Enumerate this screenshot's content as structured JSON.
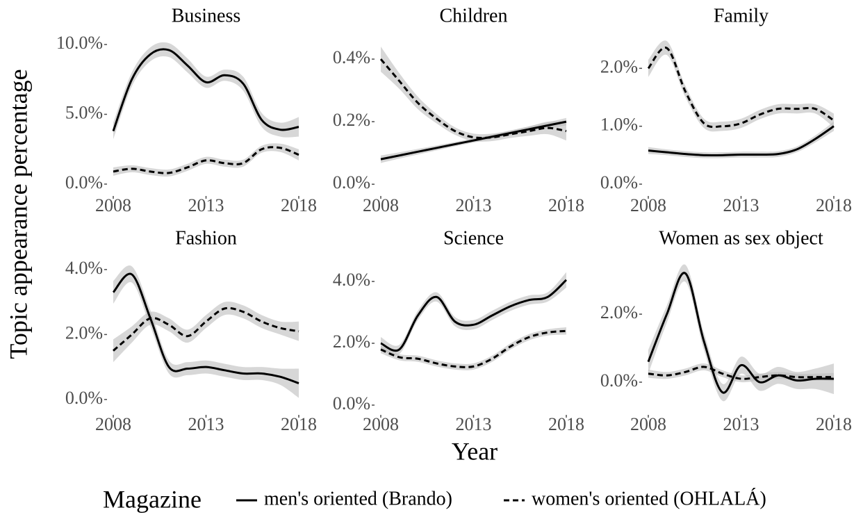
{
  "axis_titles": {
    "y": "Topic appearance percentage",
    "x": "Year"
  },
  "legend_title": "Magazine",
  "chart_data": [
    {
      "type": "line",
      "title": "Business",
      "x": [
        2008,
        2009,
        2010,
        2011,
        2012,
        2013,
        2014,
        2015,
        2016,
        2017,
        2018
      ],
      "xlim": [
        2008,
        2018
      ],
      "xticks": [
        2008,
        2013,
        2018
      ],
      "ylim": [
        -0.75,
        10.95
      ],
      "yticks": [
        {
          "value": 0,
          "label": "0.0%"
        },
        {
          "value": 5,
          "label": "5.0%"
        },
        {
          "value": 10,
          "label": "10.0%"
        }
      ],
      "series": [
        {
          "name": "men's oriented (Brando)",
          "color": "#000000",
          "dashed": false,
          "values": [
            3.8,
            7.5,
            9.3,
            9.6,
            8.5,
            7.3,
            7.8,
            7.2,
            4.6,
            3.9,
            4.1
          ],
          "se": [
            0.6,
            0.5,
            0.5,
            0.5,
            0.5,
            0.4,
            0.4,
            0.5,
            0.5,
            0.5,
            0.7
          ]
        },
        {
          "name": "women's oriented (OHLALÁ)",
          "color": "#000000",
          "dashed": true,
          "values": [
            0.9,
            1.1,
            0.9,
            0.8,
            1.2,
            1.7,
            1.5,
            1.5,
            2.5,
            2.6,
            2.1
          ],
          "se": [
            0.3,
            0.25,
            0.25,
            0.25,
            0.25,
            0.25,
            0.25,
            0.25,
            0.25,
            0.3,
            0.4
          ]
        }
      ]
    },
    {
      "type": "line",
      "title": "Children",
      "x": [
        2008,
        2009,
        2010,
        2011,
        2012,
        2013,
        2014,
        2015,
        2016,
        2017,
        2018
      ],
      "xlim": [
        2008,
        2018
      ],
      "xticks": [
        2008,
        2013,
        2018
      ],
      "ylim": [
        -0.033,
        0.489
      ],
      "yticks": [
        {
          "value": 0,
          "label": "0.0%"
        },
        {
          "value": 0.2,
          "label": "0.2%"
        },
        {
          "value": 0.4,
          "label": "0.4%"
        }
      ],
      "series": [
        {
          "name": "men's oriented (Brando)",
          "color": "#000000",
          "dashed": false,
          "values": [
            0.08,
            0.092,
            0.104,
            0.116,
            0.128,
            0.14,
            0.152,
            0.164,
            0.176,
            0.188,
            0.2
          ],
          "se": [
            0.012,
            0.01,
            0.009,
            0.008,
            0.007,
            0.007,
            0.007,
            0.008,
            0.009,
            0.01,
            0.012
          ]
        },
        {
          "name": "women's oriented (OHLALÁ)",
          "color": "#000000",
          "dashed": true,
          "values": [
            0.4,
            0.33,
            0.26,
            0.21,
            0.17,
            0.15,
            0.15,
            0.16,
            0.17,
            0.18,
            0.17
          ],
          "se": [
            0.04,
            0.025,
            0.02,
            0.015,
            0.012,
            0.012,
            0.012,
            0.012,
            0.015,
            0.02,
            0.03
          ]
        }
      ]
    },
    {
      "type": "line",
      "title": "Family",
      "x": [
        2008,
        2009,
        2010,
        2011,
        2012,
        2013,
        2014,
        2015,
        2016,
        2017,
        2018
      ],
      "xlim": [
        2008,
        2018
      ],
      "xticks": [
        2008,
        2013,
        2018
      ],
      "ylim": [
        -0.18,
        2.64
      ],
      "yticks": [
        {
          "value": 0,
          "label": "0.0%"
        },
        {
          "value": 1,
          "label": "1.0%"
        },
        {
          "value": 2,
          "label": "2.0%"
        }
      ],
      "series": [
        {
          "name": "men's oriented (Brando)",
          "color": "#000000",
          "dashed": false,
          "values": [
            0.58,
            0.55,
            0.52,
            0.5,
            0.5,
            0.51,
            0.51,
            0.52,
            0.6,
            0.78,
            1.0
          ],
          "se": [
            0.06,
            0.05,
            0.05,
            0.05,
            0.05,
            0.05,
            0.05,
            0.05,
            0.05,
            0.06,
            0.08
          ]
        },
        {
          "name": "women's oriented (OHLALÁ)",
          "color": "#000000",
          "dashed": true,
          "values": [
            2.0,
            2.35,
            1.6,
            1.05,
            1.0,
            1.05,
            1.2,
            1.3,
            1.3,
            1.3,
            1.1
          ],
          "se": [
            0.15,
            0.12,
            0.1,
            0.08,
            0.08,
            0.08,
            0.08,
            0.08,
            0.08,
            0.08,
            0.12
          ]
        }
      ]
    },
    {
      "type": "line",
      "title": "Fashion",
      "x": [
        2008,
        2009,
        2010,
        2011,
        2012,
        2013,
        2014,
        2015,
        2016,
        2017,
        2018
      ],
      "xlim": [
        2008,
        2018
      ],
      "xticks": [
        2008,
        2013,
        2018
      ],
      "ylim": [
        -0.43,
        4.49
      ],
      "yticks": [
        {
          "value": 0,
          "label": "0.0%"
        },
        {
          "value": 2,
          "label": "2.0%"
        },
        {
          "value": 4,
          "label": "4.0%"
        }
      ],
      "series": [
        {
          "name": "men's oriented (Brando)",
          "color": "#000000",
          "dashed": false,
          "values": [
            3.3,
            3.85,
            2.5,
            1.0,
            0.95,
            1.0,
            0.9,
            0.8,
            0.8,
            0.7,
            0.5
          ],
          "se": [
            0.35,
            0.25,
            0.25,
            0.2,
            0.2,
            0.2,
            0.2,
            0.2,
            0.2,
            0.25,
            0.45
          ]
        },
        {
          "name": "women's oriented (OHLALÁ)",
          "color": "#000000",
          "dashed": true,
          "values": [
            1.5,
            2.0,
            2.5,
            2.3,
            1.95,
            2.4,
            2.8,
            2.7,
            2.4,
            2.2,
            2.1
          ],
          "se": [
            0.35,
            0.25,
            0.2,
            0.2,
            0.2,
            0.2,
            0.2,
            0.2,
            0.2,
            0.2,
            0.3
          ]
        }
      ]
    },
    {
      "type": "line",
      "title": "Science",
      "x": [
        2008,
        2009,
        2010,
        2011,
        2012,
        2013,
        2014,
        2015,
        2016,
        2017,
        2018
      ],
      "xlim": [
        2008,
        2018
      ],
      "xticks": [
        2008,
        2013,
        2018
      ],
      "ylim": [
        -0.27,
        4.9
      ],
      "yticks": [
        {
          "value": 0,
          "label": "0.0%"
        },
        {
          "value": 2,
          "label": "2.0%"
        },
        {
          "value": 4,
          "label": "4.0%"
        }
      ],
      "series": [
        {
          "name": "men's oriented (Brando)",
          "color": "#000000",
          "dashed": false,
          "values": [
            2.0,
            1.8,
            2.9,
            3.5,
            2.7,
            2.6,
            2.9,
            3.2,
            3.4,
            3.5,
            4.05
          ],
          "se": [
            0.2,
            0.15,
            0.15,
            0.15,
            0.15,
            0.15,
            0.15,
            0.15,
            0.15,
            0.15,
            0.25
          ]
        },
        {
          "name": "women's oriented (OHLALÁ)",
          "color": "#000000",
          "dashed": true,
          "values": [
            1.8,
            1.55,
            1.5,
            1.35,
            1.25,
            1.25,
            1.5,
            1.9,
            2.2,
            2.35,
            2.4
          ],
          "se": [
            0.12,
            0.1,
            0.1,
            0.1,
            0.1,
            0.1,
            0.1,
            0.1,
            0.1,
            0.1,
            0.12
          ]
        }
      ]
    },
    {
      "type": "line",
      "title": "Women as sex object",
      "x": [
        2008,
        2009,
        2010,
        2011,
        2012,
        2013,
        2014,
        2015,
        2016,
        2017,
        2018
      ],
      "xlim": [
        2008,
        2018
      ],
      "xticks": [
        2008,
        2013,
        2018
      ],
      "ylim": [
        -0.92,
        3.78
      ],
      "yticks": [
        {
          "value": 0,
          "label": "0.0%"
        },
        {
          "value": 2,
          "label": "2.0%"
        }
      ],
      "series": [
        {
          "name": "men's oriented (Brando)",
          "color": "#000000",
          "dashed": false,
          "values": [
            0.6,
            2.0,
            3.2,
            1.2,
            -0.3,
            0.5,
            0.0,
            0.2,
            0.05,
            0.1,
            0.1
          ],
          "se": [
            0.35,
            0.25,
            0.25,
            0.25,
            0.25,
            0.25,
            0.25,
            0.25,
            0.25,
            0.3,
            0.45
          ]
        },
        {
          "name": "women's oriented (OHLALÁ)",
          "color": "#000000",
          "dashed": true,
          "values": [
            0.25,
            0.2,
            0.3,
            0.45,
            0.25,
            0.1,
            0.15,
            0.2,
            0.15,
            0.15,
            0.15
          ],
          "se": [
            0.12,
            0.1,
            0.1,
            0.1,
            0.1,
            0.1,
            0.1,
            0.1,
            0.1,
            0.1,
            0.12
          ]
        }
      ]
    }
  ]
}
